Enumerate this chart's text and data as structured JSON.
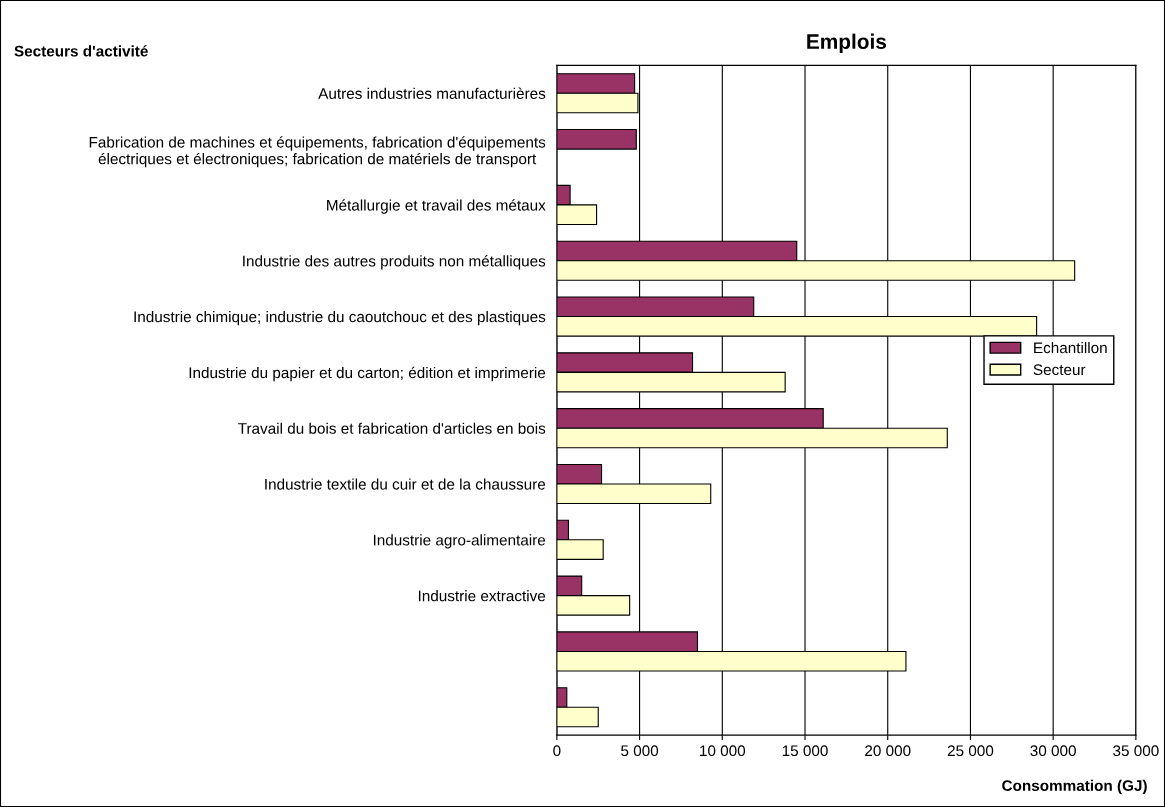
{
  "chart_data": {
    "type": "bar",
    "orientation": "horizontal",
    "title": "Emplois",
    "ylabel": "Secteurs d'activité",
    "xlabel": "Consommation (GJ)",
    "categories": [
      "Autres industries manufacturières",
      "Fabrication de machines et équipements, fabrication d'équipements\nélectriques et électroniques; fabrication de matériels de transport",
      "Métallurgie et travail des métaux",
      "Industrie des autres produits non métalliques",
      "Industrie chimique; industrie du caoutchouc et des plastiques",
      "Industrie du papier et du carton; édition et imprimerie",
      "Travail du bois et fabrication d'articles en bois",
      "Industrie textile du cuir et de la chaussure",
      "Industrie agro-alimentaire",
      "Industrie extractive",
      null,
      null
    ],
    "series": [
      {
        "name": "Echantillon",
        "color": "#993366",
        "values": [
          4700,
          4800,
          800,
          14500,
          11900,
          8200,
          16100,
          2700,
          700,
          1500,
          8500,
          600
        ]
      },
      {
        "name": "Secteur",
        "color": "#ffffcc",
        "values": [
          4900,
          null,
          2400,
          31300,
          29000,
          13800,
          23600,
          9300,
          2800,
          4400,
          21100,
          2500
        ]
      }
    ],
    "xlim": [
      0,
      35000
    ],
    "xticks": [
      0,
      {
        "value": 5000,
        "label": "5 000"
      },
      {
        "value": 10000,
        "label": "10 000"
      },
      {
        "value": 15000,
        "label": "15 000"
      },
      {
        "value": 20000,
        "label": "20 000"
      },
      {
        "value": 25000,
        "label": "25 000"
      },
      {
        "value": 30000,
        "label": "30 000"
      },
      {
        "value": 35000,
        "label": "35 000"
      }
    ],
    "grid": "x",
    "legend": "right"
  }
}
